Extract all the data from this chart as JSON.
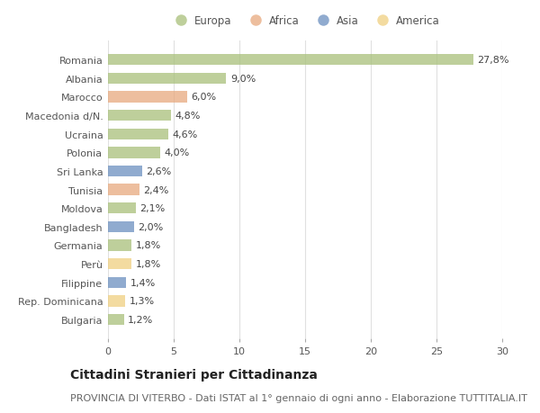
{
  "countries": [
    "Romania",
    "Albania",
    "Marocco",
    "Macedonia d/N.",
    "Ucraina",
    "Polonia",
    "Sri Lanka",
    "Tunisia",
    "Moldova",
    "Bangladesh",
    "Germania",
    "Perù",
    "Filippine",
    "Rep. Dominicana",
    "Bulgaria"
  ],
  "values": [
    27.8,
    9.0,
    6.0,
    4.8,
    4.6,
    4.0,
    2.6,
    2.4,
    2.1,
    2.0,
    1.8,
    1.8,
    1.4,
    1.3,
    1.2
  ],
  "labels": [
    "27,8%",
    "9,0%",
    "6,0%",
    "4,8%",
    "4,6%",
    "4,0%",
    "2,6%",
    "2,4%",
    "2,1%",
    "2,0%",
    "1,8%",
    "1,8%",
    "1,4%",
    "1,3%",
    "1,2%"
  ],
  "continents": [
    "Europa",
    "Europa",
    "Africa",
    "Europa",
    "Europa",
    "Europa",
    "Asia",
    "Africa",
    "Europa",
    "Asia",
    "Europa",
    "America",
    "Asia",
    "America",
    "Europa"
  ],
  "continent_colors": {
    "Europa": "#a8c07a",
    "Africa": "#e8a97e",
    "Asia": "#6b8fbf",
    "America": "#f0d080"
  },
  "legend_order": [
    "Europa",
    "Africa",
    "Asia",
    "America"
  ],
  "title": "Cittadini Stranieri per Cittadinanza",
  "subtitle": "PROVINCIA DI VITERBO - Dati ISTAT al 1° gennaio di ogni anno - Elaborazione TUTTITALIA.IT",
  "xlim": [
    0,
    30
  ],
  "xticks": [
    0,
    5,
    10,
    15,
    20,
    25,
    30
  ],
  "background_color": "#ffffff",
  "grid_color": "#e0e0e0",
  "bar_alpha": 0.75,
  "title_fontsize": 10,
  "subtitle_fontsize": 8,
  "label_fontsize": 8,
  "tick_fontsize": 8,
  "legend_fontsize": 8.5
}
